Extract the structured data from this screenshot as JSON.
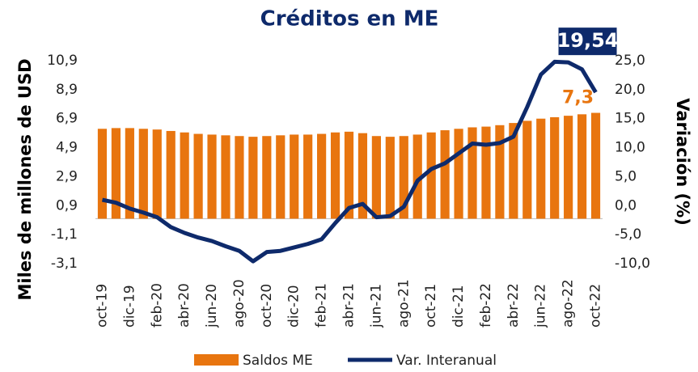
{
  "chart_data": {
    "type": "bar_line",
    "title": "Créditos en ME",
    "ylabel": "Miles de millones de USD",
    "y2label": "Variación (%)",
    "categories": [
      "oct-19",
      null,
      "dic-19",
      null,
      "feb-20",
      null,
      "abr-20",
      null,
      "jun-20",
      null,
      "ago-20",
      null,
      "oct-20",
      null,
      "dic-20",
      null,
      "feb-21",
      null,
      "abr-21",
      null,
      "jun-21",
      null,
      "ago-21",
      null,
      "oct-21",
      null,
      "dic-21",
      null,
      "feb-22",
      null,
      "abr-22",
      null,
      "jun-22",
      null,
      "ago-22",
      null,
      "oct-22"
    ],
    "series": [
      {
        "name": "Saldos ME",
        "type": "bar",
        "color": "#E8750F",
        "values": [
          6.2,
          6.25,
          6.25,
          6.2,
          6.15,
          6.05,
          5.95,
          5.85,
          5.8,
          5.75,
          5.7,
          5.65,
          5.7,
          5.75,
          5.8,
          5.8,
          5.85,
          5.95,
          6.0,
          5.9,
          5.7,
          5.65,
          5.7,
          5.8,
          5.95,
          6.1,
          6.2,
          6.3,
          6.35,
          6.45,
          6.6,
          6.75,
          6.9,
          7.0,
          7.1,
          7.2,
          7.3
        ],
        "value_labels": [
          null,
          null,
          null,
          null,
          null,
          null,
          null,
          null,
          null,
          null,
          null,
          null,
          null,
          null,
          null,
          null,
          null,
          null,
          null,
          null,
          null,
          null,
          null,
          null,
          null,
          null,
          null,
          null,
          null,
          null,
          null,
          null,
          null,
          null,
          null,
          null,
          "7,3"
        ]
      },
      {
        "name": "Var. Interanual",
        "type": "line",
        "axis": "y2",
        "color": "#0E2A6B",
        "values": [
          1.0,
          0.5,
          -0.5,
          -1.2,
          -2.0,
          -3.7,
          -4.7,
          -5.5,
          -6.1,
          -7.0,
          -7.8,
          -9.6,
          -8.0,
          -7.8,
          -7.2,
          -6.6,
          -5.8,
          -3.0,
          -0.4,
          0.3,
          -2.0,
          -1.8,
          -0.2,
          4.3,
          6.3,
          7.3,
          9.0,
          10.7,
          10.5,
          10.8,
          11.9,
          17.0,
          22.6,
          24.8,
          24.7,
          23.5,
          19.54
        ],
        "value_labels": [
          null,
          null,
          null,
          null,
          null,
          null,
          null,
          null,
          null,
          null,
          null,
          null,
          null,
          null,
          null,
          null,
          null,
          null,
          null,
          null,
          null,
          null,
          null,
          null,
          null,
          null,
          null,
          null,
          null,
          null,
          null,
          null,
          null,
          null,
          null,
          null,
          "19,54"
        ]
      }
    ],
    "ylim": [
      -3.1,
      10.9
    ],
    "yticks": [
      {
        "value": -3.1,
        "label": "-3,1"
      },
      {
        "value": -1.1,
        "label": "-1,1"
      },
      {
        "value": 0.9,
        "label": "0,9"
      },
      {
        "value": 2.9,
        "label": "2,9"
      },
      {
        "value": 4.9,
        "label": "4,9"
      },
      {
        "value": 6.9,
        "label": "6,9"
      },
      {
        "value": 8.9,
        "label": "8,9"
      },
      {
        "value": 10.9,
        "label": "10,9"
      }
    ],
    "y2lim": [
      -10,
      25
    ],
    "y2ticks": [
      {
        "value": -10,
        "label": "-10,0"
      },
      {
        "value": -5,
        "label": "-5,0"
      },
      {
        "value": 0,
        "label": "0,0"
      },
      {
        "value": 5,
        "label": "5,0"
      },
      {
        "value": 10,
        "label": "10,0"
      },
      {
        "value": 15,
        "label": "15,0"
      },
      {
        "value": 20,
        "label": "20,0"
      },
      {
        "value": 25,
        "label": "25,0"
      }
    ],
    "legend": "bottom"
  }
}
